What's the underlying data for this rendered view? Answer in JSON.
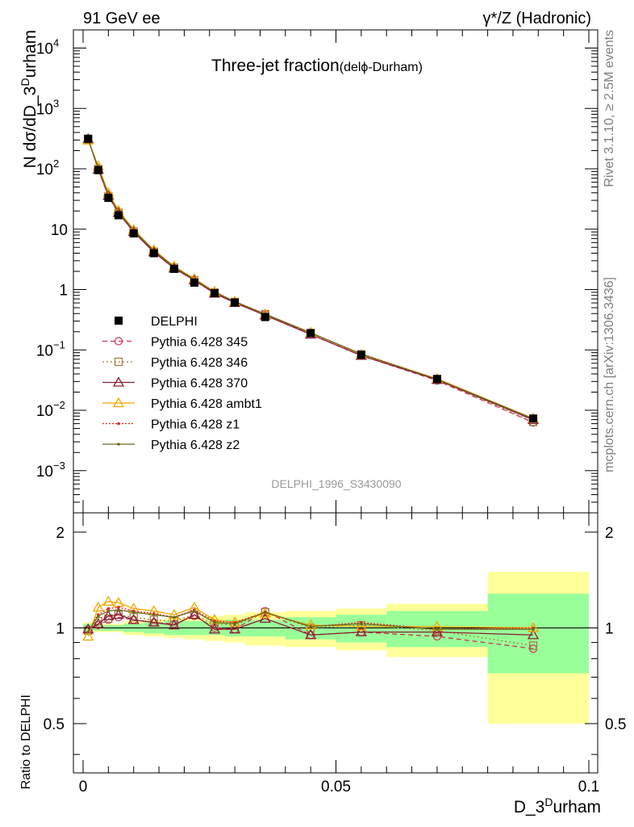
{
  "header": {
    "left": "91 GeV ee",
    "right": "γ*/Z (Hadronic)"
  },
  "side_labels": {
    "rivet": "Rivet 3.1.10, ≥ 2.5M events",
    "mcplots": "mcplots.cern.ch [arXiv:1306.3436]"
  },
  "chart_data": {
    "type": "line",
    "title_main": "Three-jet fraction",
    "title_sub_prefix": "(del",
    "title_sub_phi": "ϕ",
    "title_sub_suffix": "-Durham)",
    "ylabel_top": "N dσ/dD_3",
    "ylabel_top_sup": "D",
    "ylabel_top_suffix": "urham",
    "ylabel_bottom": "Ratio to DELPHI",
    "xlabel": "D_3",
    "xlabel_sup": "D",
    "xlabel_suffix": "urham",
    "analysis_label": "DELPHI_1996_S3430090",
    "xlim": [
      0,
      0.1
    ],
    "ylim_top": [
      0.0002,
      20000
    ],
    "ylim_bottom": [
      0.35,
      2.3
    ],
    "x_tick_labels": [
      "0",
      "0.05",
      "0.1"
    ],
    "top_ticks": [
      {
        "base": "10",
        "exp": "4"
      },
      {
        "base": "10",
        "exp": "3"
      },
      {
        "base": "10",
        "exp": "2"
      },
      {
        "base": "10",
        "exp": ""
      },
      {
        "base": "1",
        "exp": ""
      },
      {
        "base": "10",
        "exp": "−1"
      },
      {
        "base": "10",
        "exp": "−2"
      },
      {
        "base": "10",
        "exp": "−3"
      }
    ],
    "bottom_ticks_left": [
      "2",
      "1",
      "0.5"
    ],
    "bottom_ticks_right": [
      "2",
      "1",
      "0.5"
    ],
    "x": [
      0.001,
      0.003,
      0.005,
      0.007,
      0.01,
      0.014,
      0.018,
      0.022,
      0.026,
      0.03,
      0.036,
      0.045,
      0.055,
      0.07,
      0.089
    ],
    "bin_edges": [
      0,
      0.002,
      0.004,
      0.006,
      0.008,
      0.012,
      0.016,
      0.02,
      0.024,
      0.028,
      0.032,
      0.04,
      0.05,
      0.06,
      0.08,
      0.1
    ],
    "data": {
      "name": "DELPHI",
      "values": [
        315,
        95,
        33,
        17,
        8.5,
        4.0,
        2.2,
        1.3,
        0.87,
        0.61,
        0.35,
        0.19,
        0.083,
        0.033,
        0.0073
      ]
    },
    "band_inner": [
      0.03,
      0.02,
      0.02,
      0.02,
      0.03,
      0.04,
      0.05,
      0.05,
      0.05,
      0.06,
      0.06,
      0.08,
      0.1,
      0.13,
      0.28
    ],
    "band_outer": [
      0.04,
      0.03,
      0.03,
      0.03,
      0.05,
      0.06,
      0.07,
      0.08,
      0.09,
      0.1,
      0.12,
      0.13,
      0.15,
      0.19,
      0.5
    ],
    "series": [
      {
        "name": "Pythia 6.428 345",
        "color": "#cc3355",
        "dash": "6,4",
        "marker": "circle",
        "ratio": [
          0.99,
          1.02,
          1.06,
          1.08,
          1.06,
          1.04,
          1.03,
          1.09,
          1.0,
          0.99,
          1.13,
          0.95,
          0.97,
          0.94,
          0.86
        ]
      },
      {
        "name": "Pythia 6.428 346",
        "color": "#a07c3c",
        "dash": "2,3",
        "marker": "square",
        "ratio": [
          0.98,
          1.05,
          1.07,
          1.1,
          1.08,
          1.06,
          1.05,
          1.1,
          1.03,
          1.02,
          1.12,
          1.0,
          1.02,
          0.98,
          0.88
        ]
      },
      {
        "name": "Pythia 6.428 370",
        "color": "#8b1e35",
        "dash": "",
        "marker": "triangle",
        "ratio": [
          0.99,
          1.03,
          1.09,
          1.1,
          1.06,
          1.04,
          1.02,
          1.1,
          0.99,
          0.99,
          1.07,
          0.95,
          0.97,
          0.97,
          0.95
        ]
      },
      {
        "name": "Pythia 6.428 ambt1",
        "color": "#f0a800",
        "dash": "",
        "marker": "triangle",
        "ratio": [
          0.94,
          1.16,
          1.21,
          1.2,
          1.15,
          1.13,
          1.1,
          1.16,
          1.06,
          1.04,
          1.11,
          1.02,
          1.01,
          1.01,
          1.0
        ]
      },
      {
        "name": "Pythia 6.428 z1",
        "color": "#ee2222",
        "dash": "2,2",
        "marker": "dot",
        "ratio": [
          0.97,
          1.1,
          1.15,
          1.16,
          1.13,
          1.11,
          1.08,
          1.14,
          1.05,
          1.04,
          1.12,
          1.01,
          1.04,
          0.99,
          1.0
        ]
      },
      {
        "name": "Pythia 6.428 z2",
        "color": "#6b6b1e",
        "dash": "",
        "marker": "dot",
        "ratio": [
          0.97,
          1.09,
          1.13,
          1.14,
          1.12,
          1.1,
          1.08,
          1.13,
          1.04,
          1.03,
          1.12,
          1.01,
          1.03,
          0.99,
          0.99
        ]
      }
    ],
    "colors": {
      "band_inner": "#99ff99",
      "band_outer": "#ffff99",
      "data_marker": "#000000"
    }
  }
}
